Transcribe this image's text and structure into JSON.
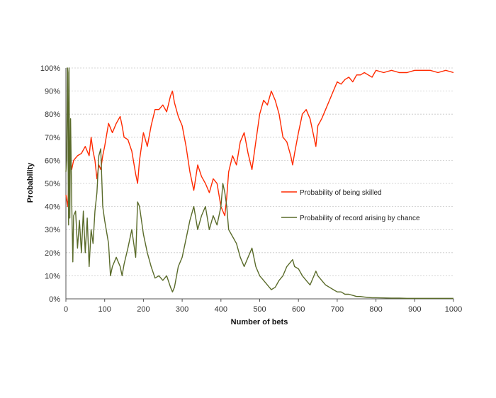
{
  "chart_data": {
    "type": "line",
    "xlabel": "Number of bets",
    "ylabel": "Probability",
    "xlim": [
      0,
      1000
    ],
    "ylim": [
      0,
      100
    ],
    "x_ticks": [
      "0",
      "100",
      "200",
      "300",
      "400",
      "500",
      "600",
      "700",
      "800",
      "900",
      "1000"
    ],
    "y_ticks": [
      "0%",
      "10%",
      "20%",
      "30%",
      "40%",
      "50%",
      "60%",
      "70%",
      "80%",
      "90%",
      "100%"
    ],
    "grid": "horizontal",
    "legend_position": "right",
    "series": [
      {
        "name": "Probability of being skilled",
        "color": "#ff2a00",
        "x": [
          0,
          5,
          10,
          15,
          20,
          30,
          40,
          50,
          60,
          65,
          70,
          75,
          80,
          85,
          90,
          95,
          100,
          110,
          115,
          120,
          130,
          140,
          145,
          150,
          160,
          170,
          180,
          185,
          190,
          200,
          210,
          220,
          230,
          240,
          250,
          260,
          270,
          275,
          280,
          290,
          300,
          310,
          320,
          330,
          340,
          350,
          360,
          370,
          380,
          390,
          400,
          405,
          410,
          415,
          420,
          430,
          440,
          450,
          460,
          470,
          480,
          490,
          500,
          510,
          520,
          530,
          540,
          550,
          560,
          570,
          580,
          585,
          590,
          600,
          610,
          620,
          630,
          640,
          645,
          650,
          660,
          670,
          680,
          690,
          700,
          710,
          720,
          730,
          740,
          750,
          760,
          770,
          780,
          790,
          800,
          820,
          840,
          860,
          880,
          900,
          920,
          940,
          960,
          980,
          1000
        ],
        "y": [
          45,
          40,
          62,
          56,
          60,
          62,
          63,
          66,
          62,
          70,
          64,
          60,
          52,
          58,
          56,
          62,
          66,
          76,
          74,
          72,
          76,
          79,
          75,
          70,
          69,
          64,
          54,
          50,
          60,
          72,
          66,
          75,
          82,
          82,
          84,
          81,
          88,
          90,
          85,
          79,
          75,
          66,
          55,
          47,
          58,
          53,
          50,
          46,
          52,
          50,
          40,
          38,
          36,
          44,
          55,
          62,
          58,
          68,
          72,
          63,
          56,
          68,
          80,
          86,
          84,
          90,
          86,
          80,
          70,
          68,
          62,
          58,
          63,
          72,
          80,
          82,
          78,
          70,
          66,
          75,
          78,
          82,
          86,
          90,
          94,
          93,
          95,
          96,
          94,
          97,
          97,
          98,
          97,
          96,
          99,
          98,
          99,
          98,
          98,
          99,
          99,
          99,
          98,
          99,
          98
        ]
      },
      {
        "name": "Probability of record arising by chance",
        "color": "#5a6b2a",
        "x": [
          0,
          2,
          4,
          5,
          6,
          7,
          8,
          10,
          12,
          15,
          18,
          20,
          25,
          30,
          35,
          40,
          45,
          50,
          55,
          60,
          65,
          70,
          75,
          80,
          85,
          90,
          95,
          100,
          110,
          115,
          120,
          130,
          140,
          145,
          150,
          160,
          170,
          180,
          185,
          190,
          200,
          210,
          220,
          230,
          240,
          250,
          260,
          270,
          275,
          280,
          290,
          300,
          310,
          320,
          330,
          340,
          350,
          360,
          370,
          380,
          390,
          400,
          405,
          410,
          415,
          420,
          430,
          440,
          450,
          460,
          470,
          480,
          490,
          500,
          510,
          520,
          530,
          540,
          550,
          560,
          570,
          580,
          585,
          590,
          600,
          610,
          620,
          630,
          640,
          645,
          650,
          660,
          670,
          680,
          690,
          700,
          710,
          720,
          730,
          740,
          750,
          760,
          770,
          780,
          790,
          800,
          820,
          840,
          860,
          880,
          900,
          920,
          940,
          960,
          980,
          1000
        ],
        "y": [
          55,
          60,
          100,
          98,
          50,
          32,
          100,
          35,
          78,
          42,
          16,
          36,
          38,
          22,
          34,
          20,
          38,
          20,
          35,
          14,
          30,
          24,
          38,
          46,
          62,
          65,
          40,
          34,
          24,
          10,
          14,
          18,
          14,
          10,
          15,
          22,
          30,
          18,
          42,
          40,
          28,
          20,
          14,
          9,
          10,
          8,
          10,
          5,
          3,
          5,
          14,
          18,
          26,
          34,
          40,
          30,
          36,
          40,
          30,
          36,
          32,
          40,
          50,
          46,
          40,
          30,
          27,
          24,
          18,
          14,
          18,
          22,
          14,
          10,
          8,
          6,
          4,
          5,
          8,
          10,
          14,
          16,
          17,
          14,
          13,
          10,
          8,
          6,
          10,
          12,
          10,
          8,
          6,
          5,
          4,
          3,
          3,
          2,
          2,
          1.5,
          1,
          1,
          0.8,
          0.6,
          0.5,
          0.5,
          0.4,
          0.3,
          0.3,
          0.2,
          0.2,
          0.2,
          0.2,
          0.2,
          0.2,
          0.2
        ]
      }
    ]
  }
}
